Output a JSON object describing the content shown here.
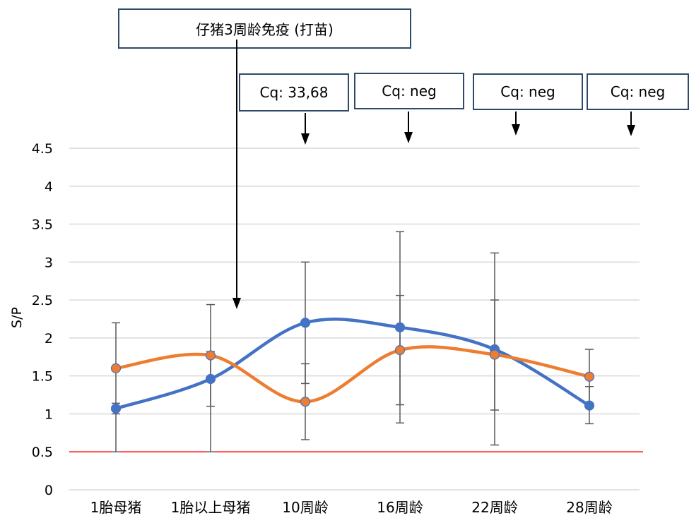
{
  "chart_data": {
    "type": "line",
    "title": "",
    "xlabel": "",
    "ylabel": "S/P",
    "ylim": [
      0,
      4.5
    ],
    "yticks": [
      "0",
      "0.5",
      "1",
      "1.5",
      "2",
      "2.5",
      "3",
      "3.5",
      "4",
      "4.5"
    ],
    "categories": [
      "1胎母猪",
      "1胎以上母猪",
      "10周龄",
      "16周龄",
      "22周龄",
      "28周龄"
    ],
    "grid": true,
    "smooth": true,
    "threshold": {
      "value": 0.5,
      "color": "#ff0000"
    },
    "series": [
      {
        "color": "#4472c4",
        "values": [
          1.07,
          1.46,
          2.2,
          2.14,
          1.85,
          1.11
        ],
        "error_low": [
          1.0,
          1.1,
          1.4,
          1.12,
          1.05,
          0.87
        ],
        "error_high": [
          1.14,
          1.82,
          3.0,
          3.4,
          2.5,
          1.36
        ]
      },
      {
        "color": "#ed7d31",
        "values": [
          1.6,
          1.77,
          1.16,
          1.84,
          1.78,
          1.49
        ],
        "error_low": [
          0.5,
          0.5,
          0.66,
          0.88,
          0.59,
          1.13
        ],
        "error_high": [
          2.2,
          2.44,
          1.66,
          2.56,
          3.12,
          1.85
        ]
      }
    ],
    "annotations": {
      "vaccination": "仔猪3周龄免疫 (打苗)",
      "cq_labels": [
        "Cq: 33,68",
        "Cq: neg",
        "Cq: neg",
        "Cq: neg"
      ]
    }
  },
  "colors": {
    "grid": "#d9d9d9",
    "axis_text": "#000000",
    "box_border": "#2e4a6b"
  }
}
